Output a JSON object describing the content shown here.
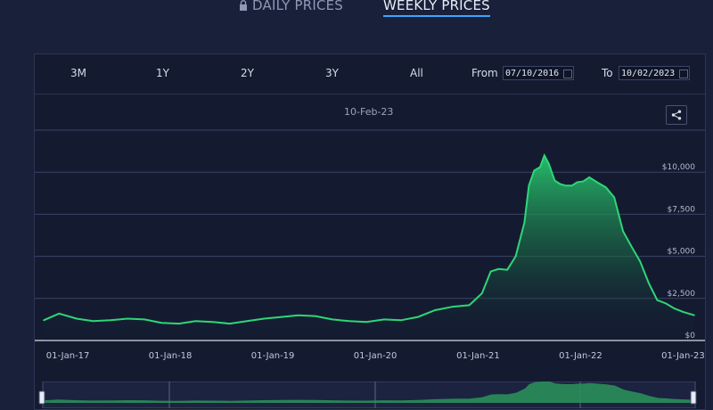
{
  "tabs": {
    "daily": "DAILY PRICES",
    "weekly": "WEEKLY PRICES"
  },
  "range_selector": {
    "buttons": [
      "3M",
      "1Y",
      "2Y",
      "3Y",
      "All"
    ],
    "from_label": "From",
    "from_value": "07/10/2016",
    "to_label": "To",
    "to_value": "10/02/2023"
  },
  "hover_date": "10-Feb-23",
  "icons": {
    "lock": "lock-icon",
    "share": "share-icon",
    "calendar": "calendar-icon"
  },
  "colors": {
    "line": "#2fd677",
    "accent": "#3ea6ff",
    "background": "#18203a"
  },
  "chart_data": {
    "type": "area",
    "title": "",
    "xlabel": "",
    "ylabel": "",
    "x_ticks": [
      "01-Jan-17",
      "01-Jan-18",
      "01-Jan-19",
      "01-Jan-20",
      "01-Jan-21",
      "01-Jan-22",
      "01-Jan-23"
    ],
    "y_ticks": [
      "$0",
      "$2,500",
      "$5,000",
      "$7,500",
      "$10,000"
    ],
    "y_tick_values": [
      0,
      2500,
      5000,
      7500,
      10000
    ],
    "ylim": [
      0,
      12500
    ],
    "xlim": [
      "2016-10-07",
      "2023-02-10"
    ],
    "series": [
      {
        "x": [
          "2016-10-07",
          "2016-12-01",
          "2017-02-01",
          "2017-04-01",
          "2017-06-01",
          "2017-08-01",
          "2017-10-01",
          "2017-12-01",
          "2018-02-01",
          "2018-04-01",
          "2018-06-01",
          "2018-08-01",
          "2018-10-01",
          "2018-12-01",
          "2019-02-01",
          "2019-04-01",
          "2019-06-01",
          "2019-08-01",
          "2019-10-01",
          "2019-12-01",
          "2020-02-01",
          "2020-04-01",
          "2020-06-01",
          "2020-08-01",
          "2020-10-01",
          "2020-12-01",
          "2021-01-15",
          "2021-02-15",
          "2021-03-15",
          "2021-04-15",
          "2021-05-15",
          "2021-06-15",
          "2021-07-01",
          "2021-07-20",
          "2021-08-10",
          "2021-08-25",
          "2021-09-10",
          "2021-10-01",
          "2021-10-20",
          "2021-11-10",
          "2021-12-01",
          "2021-12-20",
          "2022-01-10",
          "2022-02-01",
          "2022-03-01",
          "2022-04-01",
          "2022-05-01",
          "2022-06-01",
          "2022-07-01",
          "2022-08-01",
          "2022-09-01",
          "2022-10-01",
          "2022-11-01",
          "2022-12-01",
          "2023-01-01",
          "2023-02-10"
        ],
        "values": [
          1200,
          1600,
          1300,
          1150,
          1200,
          1300,
          1250,
          1050,
          1000,
          1150,
          1100,
          1000,
          1150,
          1300,
          1400,
          1500,
          1450,
          1250,
          1150,
          1100,
          1250,
          1200,
          1400,
          1800,
          2000,
          2100,
          2800,
          4100,
          4250,
          4200,
          5000,
          7000,
          9200,
          10100,
          10300,
          11000,
          10500,
          9500,
          9300,
          9200,
          9200,
          9400,
          9450,
          9700,
          9400,
          9100,
          8500,
          6500,
          5600,
          4700,
          3400,
          2400,
          2200,
          1900,
          1700,
          1500
        ]
      }
    ],
    "grid": true
  }
}
